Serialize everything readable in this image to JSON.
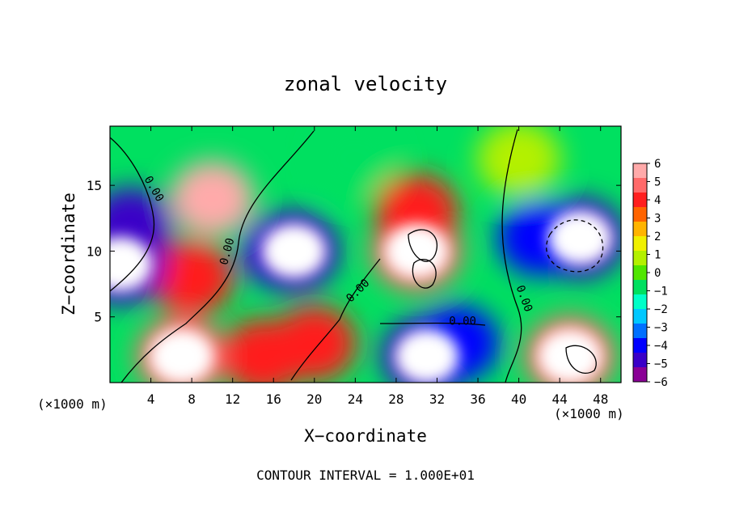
{
  "chart_data": {
    "type": "heatmap",
    "title": "zonal velocity",
    "xlabel": "X−coordinate",
    "ylabel": "Z−coordinate",
    "x_unit_left": "(×1000 m)",
    "x_unit_right": "(×1000 m)",
    "footer": "CONTOUR INTERVAL = 1.000E+01",
    "xlim": [
      0,
      50
    ],
    "ylim": [
      0,
      19.5
    ],
    "xticks": [
      4,
      8,
      12,
      16,
      20,
      24,
      28,
      32,
      36,
      40,
      44,
      48
    ],
    "yticks": [
      5,
      10,
      15
    ],
    "contour_labels": [
      "0.00",
      "0.00",
      "0.00",
      "0.00",
      "0.00"
    ],
    "colorbar": {
      "ticks": [
        "6",
        "5",
        "4",
        "3",
        "2",
        "1",
        "0",
        "−1",
        "−2",
        "−3",
        "−4",
        "−5",
        "−6"
      ],
      "range": [
        -6,
        6
      ],
      "colors": [
        "#8a0096",
        "#3a00c8",
        "#0000ff",
        "#0070ff",
        "#00c8ff",
        "#00ffc8",
        "#00e060",
        "#50e600",
        "#b4f000",
        "#f0f000",
        "#ffb400",
        "#ff6400",
        "#ff1e1e",
        "#ff6a6a",
        "#ffaaaa"
      ]
    },
    "fields": [
      {
        "x": 10,
        "z": 14,
        "value": 5.8
      },
      {
        "x": 8,
        "z": 8,
        "value": 4.5
      },
      {
        "x": 2,
        "z": 12,
        "value": -5
      },
      {
        "x": 1,
        "z": 9,
        "value": -7
      },
      {
        "x": 17,
        "z": 10,
        "value": -4
      },
      {
        "x": 18,
        "z": 10,
        "value": -8
      },
      {
        "x": 30,
        "z": 10,
        "value": 7
      },
      {
        "x": 30,
        "z": 13,
        "value": 4
      },
      {
        "x": 46,
        "z": 11,
        "value": -7
      },
      {
        "x": 42,
        "z": 11,
        "value": -4
      },
      {
        "x": 31,
        "z": 2,
        "value": -7
      },
      {
        "x": 34,
        "z": 3,
        "value": -4
      },
      {
        "x": 7,
        "z": 2,
        "value": 7
      },
      {
        "x": 45,
        "z": 2,
        "value": 7
      },
      {
        "x": 20,
        "z": 3,
        "value": 4
      },
      {
        "x": 15,
        "z": 2,
        "value": 4
      },
      {
        "x": 24,
        "z": 17,
        "value": -1
      },
      {
        "x": 40,
        "z": 17,
        "value": 0.5
      }
    ]
  }
}
